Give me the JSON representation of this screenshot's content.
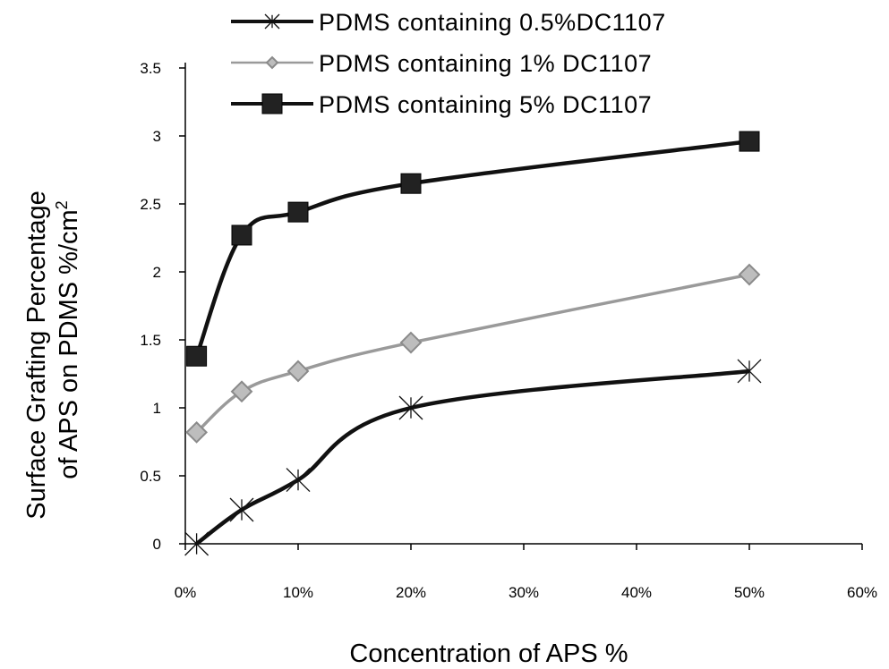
{
  "chart_data": {
    "type": "line",
    "xlabel": "Concentration of APS %",
    "ylabel_line1": "Surface Grafting Percentage",
    "ylabel_line2": "of APS on PDMS %/cm",
    "ylabel_sup": "2",
    "xlim": [
      0,
      60
    ],
    "ylim": [
      0,
      3.5
    ],
    "x_ticks": [
      0,
      10,
      20,
      30,
      40,
      50,
      60
    ],
    "x_tick_labels": [
      "0%",
      "10%",
      "20%",
      "30%",
      "40%",
      "50%",
      "60%"
    ],
    "y_ticks": [
      0,
      0.5,
      1,
      1.5,
      2,
      2.5,
      3,
      3.5
    ],
    "y_tick_labels": [
      "0",
      "0.5",
      "1",
      "1.5",
      "2",
      "2.5",
      "3",
      "3.5"
    ],
    "grid": false,
    "legend_position": "top",
    "series": [
      {
        "name": "PDMS containing  0.5%DC1107",
        "marker": "star",
        "color": "#111111",
        "x": [
          1,
          5,
          10,
          20,
          50
        ],
        "y": [
          0,
          0.25,
          0.47,
          1.0,
          1.27
        ]
      },
      {
        "name": "PDMS containing  1% DC1107",
        "marker": "diamond",
        "color": "#9a9a9a",
        "x": [
          1,
          5,
          10,
          20,
          50
        ],
        "y": [
          0.82,
          1.12,
          1.27,
          1.48,
          1.98
        ]
      },
      {
        "name": "PDMS containing  5% DC1107",
        "marker": "square",
        "color": "#111111",
        "x": [
          1,
          5,
          10,
          20,
          50
        ],
        "y": [
          1.38,
          2.27,
          2.44,
          2.65,
          2.96
        ]
      }
    ]
  }
}
